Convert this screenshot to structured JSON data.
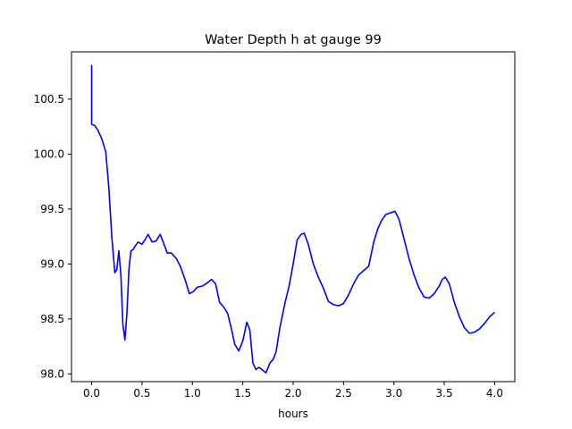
{
  "chart_data": {
    "type": "line",
    "title": "Water Depth h at gauge 99",
    "xlabel": "hours",
    "ylabel": "",
    "xlim": [
      -0.2,
      4.2
    ],
    "ylim": [
      97.93,
      100.93
    ],
    "grid": false,
    "legend": "none",
    "x_ticks": [
      0.0,
      0.5,
      1.0,
      1.5,
      2.0,
      2.5,
      3.0,
      3.5,
      4.0
    ],
    "x_tick_labels": [
      "0.0",
      "0.5",
      "1.0",
      "1.5",
      "2.0",
      "2.5",
      "3.0",
      "3.5",
      "4.0"
    ],
    "y_ticks": [
      98.0,
      98.5,
      99.0,
      99.5,
      100.0,
      100.5
    ],
    "y_tick_labels": [
      "98.0",
      "98.5",
      "99.0",
      "99.5",
      "100.0",
      "100.5"
    ],
    "series": [
      {
        "color": "#0000ff",
        "x": [
          0.0,
          0.0,
          0.03,
          0.06,
          0.1,
          0.14,
          0.17,
          0.2,
          0.23,
          0.25,
          0.27,
          0.29,
          0.31,
          0.33,
          0.35,
          0.37,
          0.39,
          0.41,
          0.43,
          0.46,
          0.5,
          0.53,
          0.56,
          0.6,
          0.64,
          0.68,
          0.71,
          0.75,
          0.79,
          0.84,
          0.88,
          0.93,
          0.97,
          1.01,
          1.05,
          1.1,
          1.15,
          1.19,
          1.23,
          1.27,
          1.31,
          1.35,
          1.39,
          1.42,
          1.46,
          1.5,
          1.54,
          1.57,
          1.6,
          1.63,
          1.66,
          1.69,
          1.73,
          1.77,
          1.8,
          1.83,
          1.87,
          1.92,
          1.96,
          2.0,
          2.04,
          2.08,
          2.11,
          2.15,
          2.2,
          2.25,
          2.3,
          2.35,
          2.4,
          2.45,
          2.5,
          2.55,
          2.6,
          2.65,
          2.7,
          2.75,
          2.8,
          2.84,
          2.88,
          2.92,
          2.95,
          2.98,
          3.01,
          3.05,
          3.1,
          3.15,
          3.2,
          3.25,
          3.3,
          3.35,
          3.4,
          3.45,
          3.48,
          3.51,
          3.55,
          3.6,
          3.65,
          3.7,
          3.75,
          3.8,
          3.85,
          3.9,
          3.95,
          4.0
        ],
        "y": [
          100.81,
          100.27,
          100.26,
          100.22,
          100.14,
          100.02,
          99.7,
          99.25,
          98.92,
          98.95,
          99.12,
          98.9,
          98.45,
          98.31,
          98.55,
          98.95,
          99.12,
          99.13,
          99.16,
          99.2,
          99.18,
          99.22,
          99.27,
          99.2,
          99.21,
          99.27,
          99.2,
          99.1,
          99.1,
          99.05,
          98.98,
          98.85,
          98.73,
          98.75,
          98.79,
          98.8,
          98.83,
          98.86,
          98.82,
          98.65,
          98.61,
          98.55,
          98.4,
          98.27,
          98.21,
          98.3,
          98.47,
          98.4,
          98.1,
          98.04,
          98.06,
          98.04,
          98.01,
          98.1,
          98.13,
          98.2,
          98.43,
          98.65,
          98.8,
          99.0,
          99.22,
          99.27,
          99.28,
          99.18,
          99.0,
          98.88,
          98.78,
          98.66,
          98.63,
          98.62,
          98.64,
          98.72,
          98.82,
          98.9,
          98.94,
          98.98,
          99.2,
          99.32,
          99.4,
          99.45,
          99.46,
          99.47,
          99.48,
          99.41,
          99.23,
          99.05,
          98.9,
          98.78,
          98.7,
          98.69,
          98.73,
          98.8,
          98.86,
          98.88,
          98.82,
          98.65,
          98.52,
          98.42,
          98.37,
          98.38,
          98.41,
          98.46,
          98.52,
          98.56
        ]
      }
    ]
  }
}
